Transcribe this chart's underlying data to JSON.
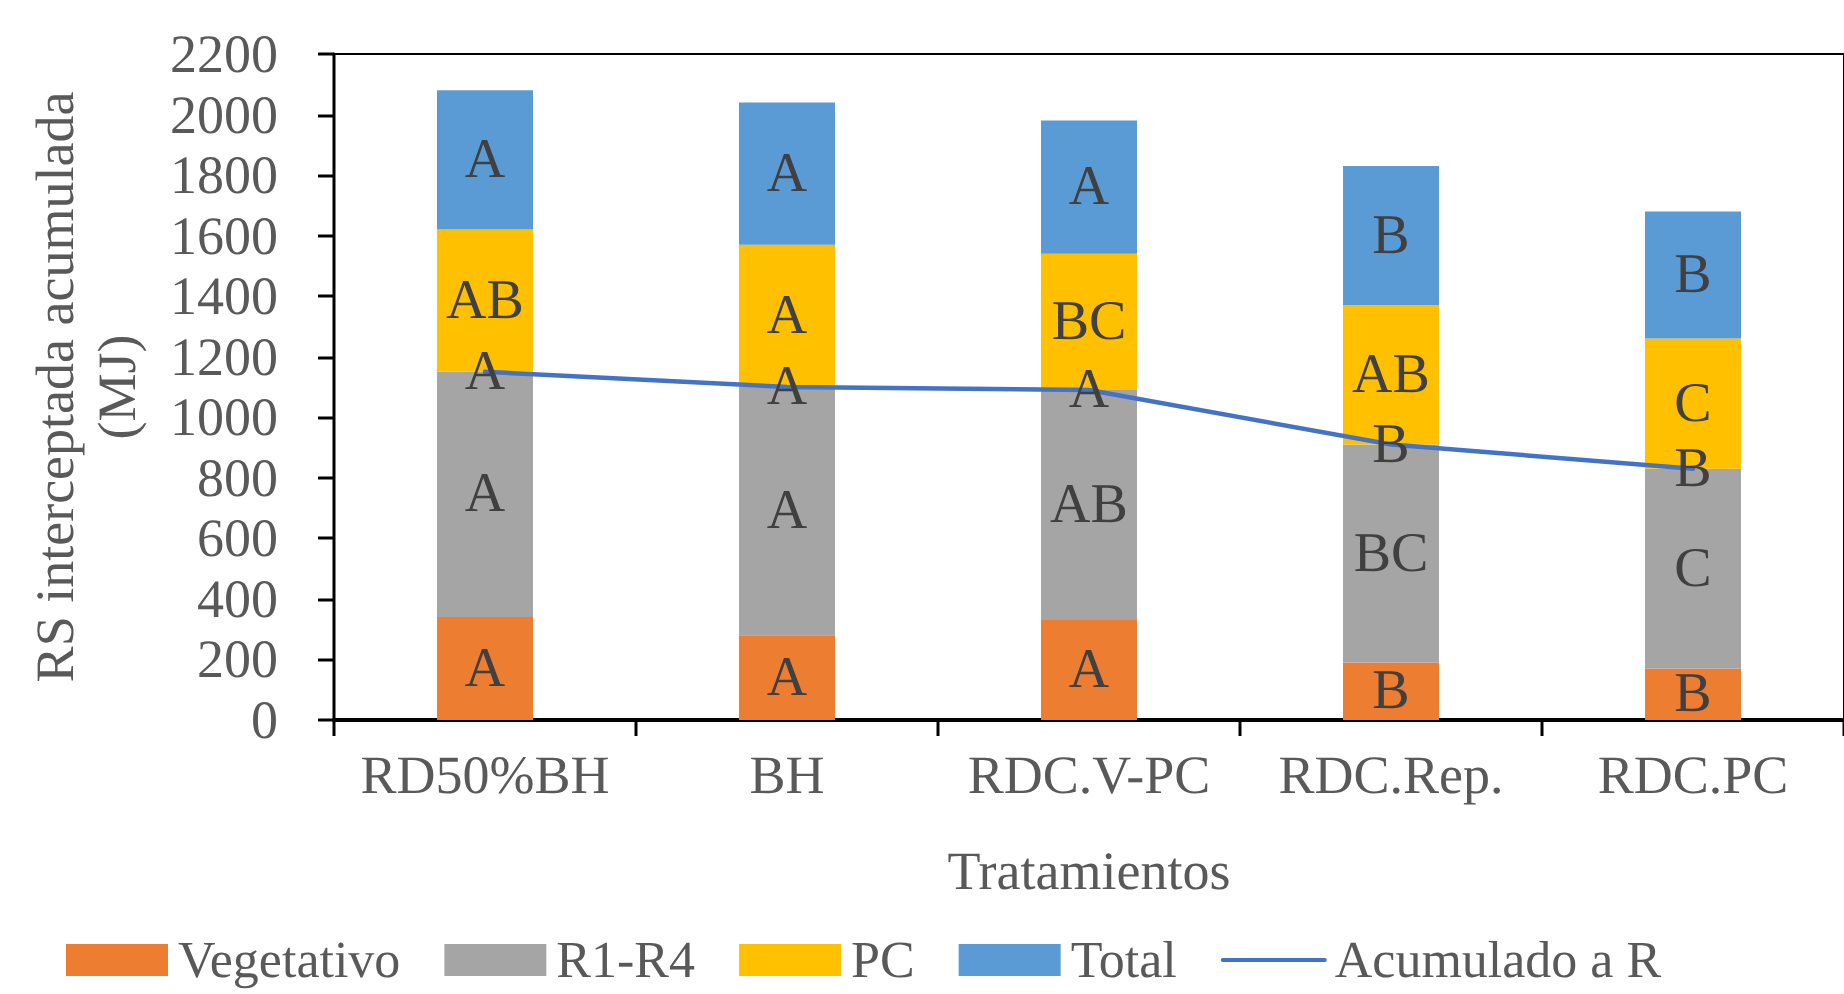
{
  "chart_data": {
    "type": "bar",
    "stacked": true,
    "xlabel": "Tratamientos",
    "ylabel": "RS interceptada acumulada (MJ)",
    "categories": [
      "RD50%BH",
      "BH",
      "RDC.V-PC",
      "RDC.Rep.",
      "RDC.PC"
    ],
    "series": [
      {
        "name": "Vegetativo",
        "color": "#ed7d31",
        "values": [
          340,
          280,
          330,
          190,
          170
        ],
        "value_labels": [
          "A",
          "A",
          "A",
          "B",
          "B"
        ]
      },
      {
        "name": "R1-R4",
        "color": "#a5a5a5",
        "values": [
          810,
          820,
          760,
          720,
          660
        ],
        "value_labels": [
          "A",
          "A",
          "AB",
          "BC",
          "C"
        ]
      },
      {
        "name": "PC",
        "color": "#ffc000",
        "values": [
          470,
          470,
          450,
          460,
          430
        ],
        "value_labels": [
          "AB",
          "A",
          "BC",
          "AB",
          "C"
        ]
      },
      {
        "name": "Total",
        "color": "#5b9bd5",
        "values": [
          460,
          470,
          440,
          460,
          420
        ],
        "value_labels": [
          "A",
          "A",
          "A",
          "B",
          "B"
        ]
      },
      {
        "name": "Acumulado a R",
        "type": "line",
        "color": "#4472c4",
        "values": [
          1150,
          1100,
          1090,
          910,
          830
        ],
        "value_labels": [
          "A",
          "A",
          "A",
          "B",
          "B"
        ]
      }
    ],
    "ylim": [
      0,
      2200
    ],
    "yticks": [
      0,
      200,
      400,
      600,
      800,
      1000,
      1200,
      1400,
      1600,
      1800,
      2000,
      2200
    ],
    "grid": false,
    "legend": "bottom",
    "marker": "none"
  }
}
